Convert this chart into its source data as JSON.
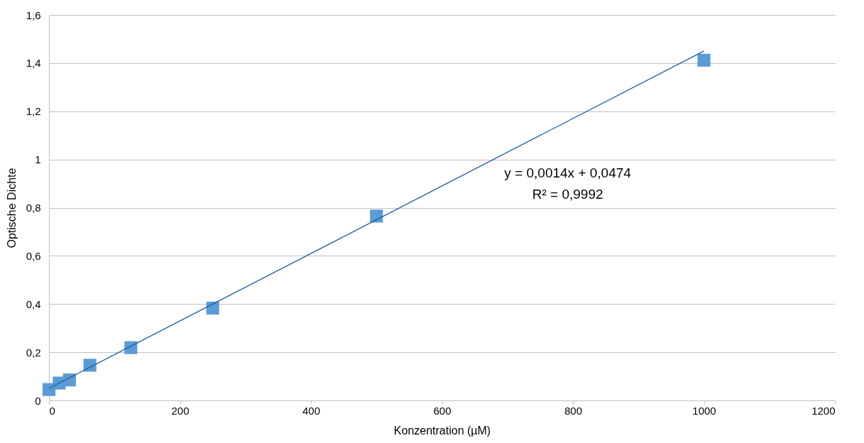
{
  "chart_data": {
    "type": "scatter",
    "xlabel": "Konzentration (µM)",
    "ylabel": "Optische Dichte",
    "xlim": [
      0,
      1200
    ],
    "xticks": [
      0,
      200,
      400,
      600,
      800,
      1000,
      1200
    ],
    "ylim": [
      0,
      1.6
    ],
    "yticks": [
      0,
      {
        "value": 0.2,
        "label": "0,2"
      },
      {
        "value": 0.4,
        "label": "0,4"
      },
      {
        "value": 0.6,
        "label": "0,6"
      },
      {
        "value": 0.8,
        "label": "0,8"
      },
      1,
      {
        "value": 1.2,
        "label": "1,2"
      },
      {
        "value": 1.4,
        "label": "1,4"
      },
      {
        "value": 1.6,
        "label": "1,6"
      }
    ],
    "grid": "y",
    "series": [
      {
        "color": "#5b9bd5",
        "marker": "square",
        "x": [
          0,
          15.6,
          31.25,
          62.5,
          125,
          250,
          500,
          1000
        ],
        "values": [
          0.045,
          0.072,
          0.085,
          0.146,
          0.219,
          0.383,
          0.765,
          1.412
        ]
      },
      {
        "type": "line",
        "color": "#1f5a96",
        "x": [
          0,
          1000
        ],
        "values": [
          0.05,
          1.45
        ]
      }
    ],
    "annotations": [
      "y = 0,0014x + 0,0474",
      "R² = 0,9992"
    ]
  }
}
